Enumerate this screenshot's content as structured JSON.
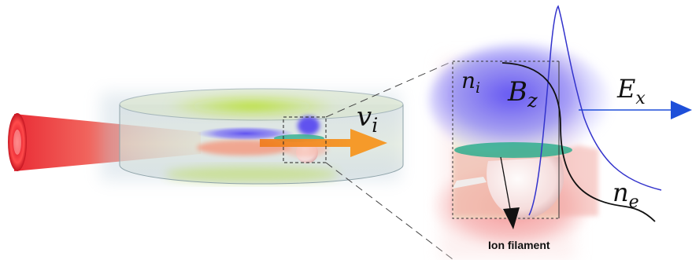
{
  "labels": {
    "velocity": "v",
    "velocity_sub": "i",
    "ion_density": "n",
    "ion_density_sub": "i",
    "magnetic_field": "B",
    "magnetic_field_sub": "z",
    "electric_field": "E",
    "electric_field_sub": "x",
    "electron_density": "n",
    "electron_density_sub": "e",
    "caption": "Ion filament"
  },
  "colors": {
    "laser": "#e8202a",
    "plasma_green": "#a6d81e",
    "ion_blue": "#6b5cf2",
    "arrow_orange": "#f58c1e",
    "field_arrow": "#1e4fd9",
    "ex_curve": "#3333cc",
    "filament": "#2fae8e",
    "ne_curve": "#111111"
  }
}
